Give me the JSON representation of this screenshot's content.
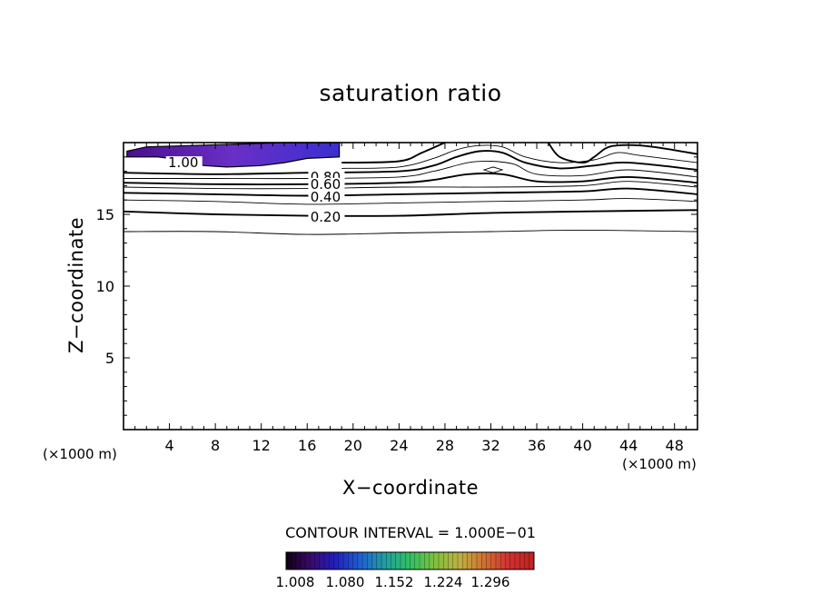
{
  "chart_data": {
    "type": "contour",
    "title": "saturation ratio",
    "xlabel": "X−coordinate",
    "ylabel": "Z−coordinate",
    "x_unit_left": "(×1000 m)",
    "x_unit_right": "(×1000 m)",
    "xlim": [
      0,
      50
    ],
    "ylim": [
      0,
      20
    ],
    "x_ticks": [
      4,
      8,
      12,
      16,
      20,
      24,
      28,
      32,
      36,
      40,
      44,
      48
    ],
    "y_ticks": [
      5,
      10,
      15
    ],
    "contour_interval_text": "CONTOUR INTERVAL = 1.000E−01",
    "contour_labels": [
      {
        "text": "1.00",
        "x": 5.2,
        "z": 18.6
      },
      {
        "text": "0.80",
        "x": 17.6,
        "z": 17.6
      },
      {
        "text": "0.60",
        "x": 17.6,
        "z": 17.1
      },
      {
        "text": "0.40",
        "x": 17.6,
        "z": 16.2
      },
      {
        "text": "0.20",
        "x": 17.6,
        "z": 14.8
      }
    ],
    "contours": [
      {
        "level": 0.1,
        "bold": false,
        "points": [
          [
            0,
            13.8
          ],
          [
            8,
            13.8
          ],
          [
            16,
            13.6
          ],
          [
            24,
            13.7
          ],
          [
            32,
            13.8
          ],
          [
            40,
            13.9
          ],
          [
            50,
            13.8
          ]
        ]
      },
      {
        "level": 0.2,
        "bold": true,
        "points": [
          [
            0,
            15.2
          ],
          [
            8,
            15.0
          ],
          [
            16,
            14.9
          ],
          [
            24,
            14.9
          ],
          [
            32,
            15.1
          ],
          [
            40,
            15.2
          ],
          [
            50,
            15.3
          ]
        ]
      },
      {
        "level": 0.3,
        "bold": false,
        "points": [
          [
            0,
            16.0
          ],
          [
            8,
            15.9
          ],
          [
            16,
            15.7
          ],
          [
            24,
            15.8
          ],
          [
            32,
            15.9
          ],
          [
            40,
            16.0
          ],
          [
            44,
            16.1
          ],
          [
            50,
            15.9
          ]
        ]
      },
      {
        "level": 0.4,
        "bold": true,
        "points": [
          [
            0,
            16.5
          ],
          [
            8,
            16.4
          ],
          [
            16,
            16.3
          ],
          [
            24,
            16.4
          ],
          [
            32,
            16.5
          ],
          [
            40,
            16.6
          ],
          [
            44,
            16.8
          ],
          [
            50,
            16.4
          ]
        ]
      },
      {
        "level": 0.5,
        "bold": false,
        "points": [
          [
            0,
            16.9
          ],
          [
            8,
            16.8
          ],
          [
            16,
            16.8
          ],
          [
            24,
            16.9
          ],
          [
            32,
            16.9
          ],
          [
            40,
            17.0
          ],
          [
            44,
            17.3
          ],
          [
            50,
            16.9
          ]
        ]
      },
      {
        "level": 0.6,
        "bold": true,
        "points": [
          [
            0,
            17.2
          ],
          [
            8,
            17.1
          ],
          [
            16,
            17.1
          ],
          [
            24,
            17.2
          ],
          [
            27,
            17.4
          ],
          [
            30,
            17.8
          ],
          [
            33,
            17.8
          ],
          [
            36,
            17.3
          ],
          [
            40,
            17.3
          ],
          [
            44,
            17.6
          ],
          [
            50,
            17.2
          ]
        ]
      },
      {
        "level": 0.7,
        "bold": false,
        "points": [
          [
            0,
            17.5
          ],
          [
            8,
            17.5
          ],
          [
            16,
            17.5
          ],
          [
            24,
            17.6
          ],
          [
            27,
            18.0
          ],
          [
            30,
            18.6
          ],
          [
            32,
            18.7
          ],
          [
            34,
            18.5
          ],
          [
            36,
            17.8
          ],
          [
            40,
            17.7
          ],
          [
            44,
            18.1
          ],
          [
            50,
            17.6
          ]
        ]
      },
      {
        "level": 0.8,
        "bold": true,
        "points": [
          [
            0,
            17.9
          ],
          [
            8,
            17.8
          ],
          [
            16,
            17.9
          ],
          [
            24,
            18.0
          ],
          [
            27,
            18.4
          ],
          [
            29,
            19.0
          ],
          [
            31,
            19.4
          ],
          [
            33,
            19.3
          ],
          [
            35,
            18.6
          ],
          [
            38,
            18.2
          ],
          [
            41,
            18.4
          ],
          [
            44,
            18.6
          ],
          [
            50,
            18.1
          ]
        ]
      },
      {
        "level": 0.9,
        "bold": false,
        "points": [
          [
            19,
            18.2
          ],
          [
            24,
            18.3
          ],
          [
            27,
            18.9
          ],
          [
            29,
            19.5
          ],
          [
            31,
            19.8
          ],
          [
            33,
            19.7
          ],
          [
            35,
            19.0
          ],
          [
            38,
            18.6
          ],
          [
            41,
            18.8
          ],
          [
            43,
            19.3
          ],
          [
            45,
            19.1
          ],
          [
            50,
            18.6
          ]
        ]
      },
      {
        "level": 1.0,
        "bold": true,
        "points": [
          [
            19,
            18.6
          ],
          [
            24,
            18.7
          ],
          [
            26,
            19.3
          ],
          [
            28,
            20.0
          ]
        ]
      },
      {
        "level": 1.0,
        "bold": true,
        "points": [
          [
            37,
            20.0
          ],
          [
            38,
            19.0
          ],
          [
            40,
            18.6
          ],
          [
            41,
            19.0
          ],
          [
            42,
            19.6
          ],
          [
            43,
            19.8
          ],
          [
            45,
            19.8
          ],
          [
            47,
            19.6
          ],
          [
            50,
            19.2
          ]
        ]
      }
    ],
    "closed_contours": [
      {
        "level": 0.9,
        "points": [
          [
            31.4,
            18.1
          ],
          [
            32.2,
            18.3
          ],
          [
            33.0,
            18.1
          ],
          [
            32.2,
            17.9
          ]
        ]
      }
    ],
    "filled_region": {
      "points": [
        [
          0.3,
          19.4
        ],
        [
          2,
          19.7
        ],
        [
          6,
          19.8
        ],
        [
          10,
          19.9
        ],
        [
          14,
          20.0
        ],
        [
          18.8,
          20.0
        ],
        [
          18.8,
          19.0
        ],
        [
          16,
          18.9
        ],
        [
          14,
          18.6
        ],
        [
          12,
          18.4
        ],
        [
          9,
          18.3
        ],
        [
          7,
          18.4
        ],
        [
          5,
          18.8
        ],
        [
          3,
          19.0
        ],
        [
          0.3,
          19.0
        ]
      ],
      "colors": [
        "#4a0d92",
        "#6a2fc6",
        "#3a2fd0"
      ]
    },
    "colorbar": {
      "labels": [
        "1.008",
        "1.080",
        "1.152",
        "1.224",
        "1.296"
      ],
      "min": 1.008,
      "max": 1.32,
      "stops": [
        "#100010",
        "#3a0a6e",
        "#2020c0",
        "#2060d0",
        "#20a0a0",
        "#30c060",
        "#80c040",
        "#c0b040",
        "#d07030",
        "#d03030",
        "#c02020"
      ]
    }
  }
}
